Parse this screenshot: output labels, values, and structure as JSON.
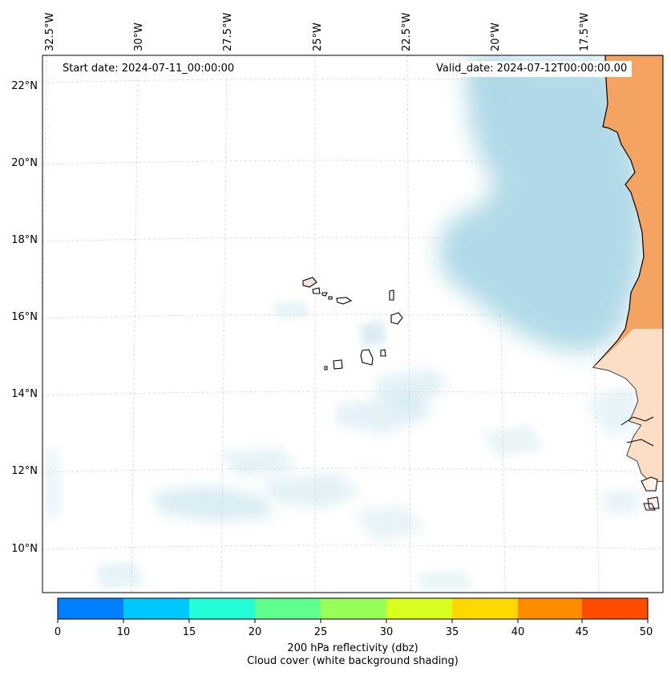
{
  "map": {
    "start_label": "Start date:",
    "start_value": "2024-07-11_00:00:00",
    "valid_label": "Valid_date:",
    "valid_value": "2024-07-12T00:00:00.00",
    "lon_labels": [
      "32.5°W",
      "30°W",
      "27.5°W",
      "25°W",
      "22.5°W",
      "20°W",
      "17.5°W"
    ],
    "lat_labels": [
      "22°N",
      "20°N",
      "18°N",
      "16°N",
      "14°N",
      "12°N",
      "10°N"
    ],
    "land_color": "#f4a460",
    "cloud_color": "#add8e6"
  },
  "colorbar": {
    "colors": [
      "#0080ff",
      "#00c8ff",
      "#22ffd8",
      "#60ff90",
      "#98ff58",
      "#d8ff20",
      "#ffd800",
      "#ff8c00",
      "#ff4d00"
    ],
    "ticks": [
      "0",
      "10",
      "15",
      "20",
      "25",
      "30",
      "35",
      "40",
      "45",
      "50"
    ],
    "title_line1": "200 hPa reflectivity (dbz)",
    "title_line2": "Cloud cover (white background shading)"
  }
}
